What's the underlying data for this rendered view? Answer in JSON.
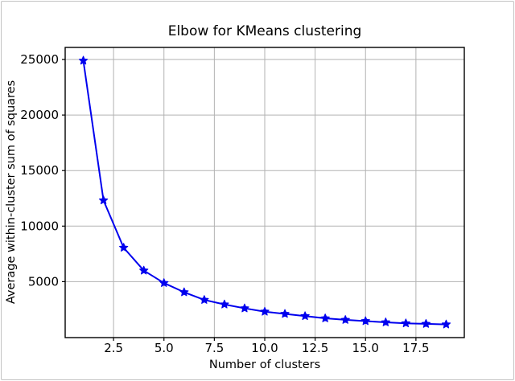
{
  "figure": {
    "background_color": "#ffffff",
    "border_color": "#c3c3c3"
  },
  "chart_data": {
    "type": "line",
    "title": "Elbow for KMeans clustering",
    "xlabel": "Number of clusters",
    "ylabel": "Average within-cluster sum of squares",
    "x": [
      1,
      2,
      3,
      4,
      5,
      6,
      7,
      8,
      9,
      10,
      11,
      12,
      13,
      14,
      15,
      16,
      17,
      18,
      19
    ],
    "y": [
      24900,
      12320,
      8060,
      6000,
      4880,
      4050,
      3360,
      2950,
      2600,
      2300,
      2100,
      1900,
      1700,
      1560,
      1450,
      1340,
      1250,
      1200,
      1150
    ],
    "xlim": [
      0.1,
      19.9
    ],
    "ylim": [
      -37,
      26087
    ],
    "x_ticks": [
      2.5,
      5.0,
      7.5,
      10.0,
      12.5,
      15.0,
      17.5
    ],
    "x_tick_labels": [
      "2.5",
      "5.0",
      "7.5",
      "10.0",
      "12.5",
      "15.0",
      "17.5"
    ],
    "y_ticks": [
      5000,
      10000,
      15000,
      20000,
      25000
    ],
    "y_tick_labels": [
      "5000",
      "10000",
      "15000",
      "20000",
      "25000"
    ],
    "grid": true,
    "legend": "none",
    "line_color": "#0000ee",
    "marker": "star",
    "marker_color": "#0000ee",
    "grid_color": "#b2b2b2",
    "spine_color": "#000000",
    "tick_color": "#000000",
    "text_color": "#000000"
  }
}
